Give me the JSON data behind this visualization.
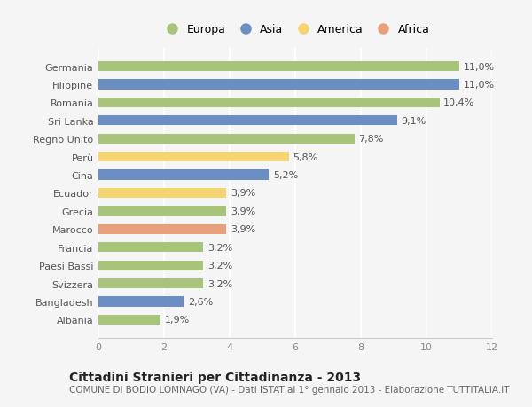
{
  "categories": [
    "Germania",
    "Filippine",
    "Romania",
    "Sri Lanka",
    "Regno Unito",
    "Perù",
    "Cina",
    "Ecuador",
    "Grecia",
    "Marocco",
    "Francia",
    "Paesi Bassi",
    "Svizzera",
    "Bangladesh",
    "Albania"
  ],
  "values": [
    11.0,
    11.0,
    10.4,
    9.1,
    7.8,
    5.8,
    5.2,
    3.9,
    3.9,
    3.9,
    3.2,
    3.2,
    3.2,
    2.6,
    1.9
  ],
  "continents": [
    "Europa",
    "Asia",
    "Europa",
    "Asia",
    "Europa",
    "America",
    "Asia",
    "America",
    "Europa",
    "Africa",
    "Europa",
    "Europa",
    "Europa",
    "Asia",
    "Europa"
  ],
  "labels": [
    "11,0%",
    "11,0%",
    "10,4%",
    "9,1%",
    "7,8%",
    "5,8%",
    "5,2%",
    "3,9%",
    "3,9%",
    "3,9%",
    "3,2%",
    "3,2%",
    "3,2%",
    "2,6%",
    "1,9%"
  ],
  "continent_colors": {
    "Europa": "#a8c47a",
    "Asia": "#6b8fc2",
    "America": "#f5d472",
    "Africa": "#e8a07a"
  },
  "legend_order": [
    "Europa",
    "Asia",
    "America",
    "Africa"
  ],
  "title": "Cittadini Stranieri per Cittadinanza - 2013",
  "subtitle": "COMUNE DI BODIO LOMNAGO (VA) - Dati ISTAT al 1° gennaio 2013 - Elaborazione TUTTITALIA.IT",
  "xlim": [
    0,
    12
  ],
  "xticks": [
    0,
    2,
    4,
    6,
    8,
    10,
    12
  ],
  "background_color": "#f5f5f5",
  "grid_color": "#ffffff",
  "bar_height": 0.55,
  "title_fontsize": 10,
  "subtitle_fontsize": 7.5,
  "tick_fontsize": 8,
  "label_fontsize": 8
}
